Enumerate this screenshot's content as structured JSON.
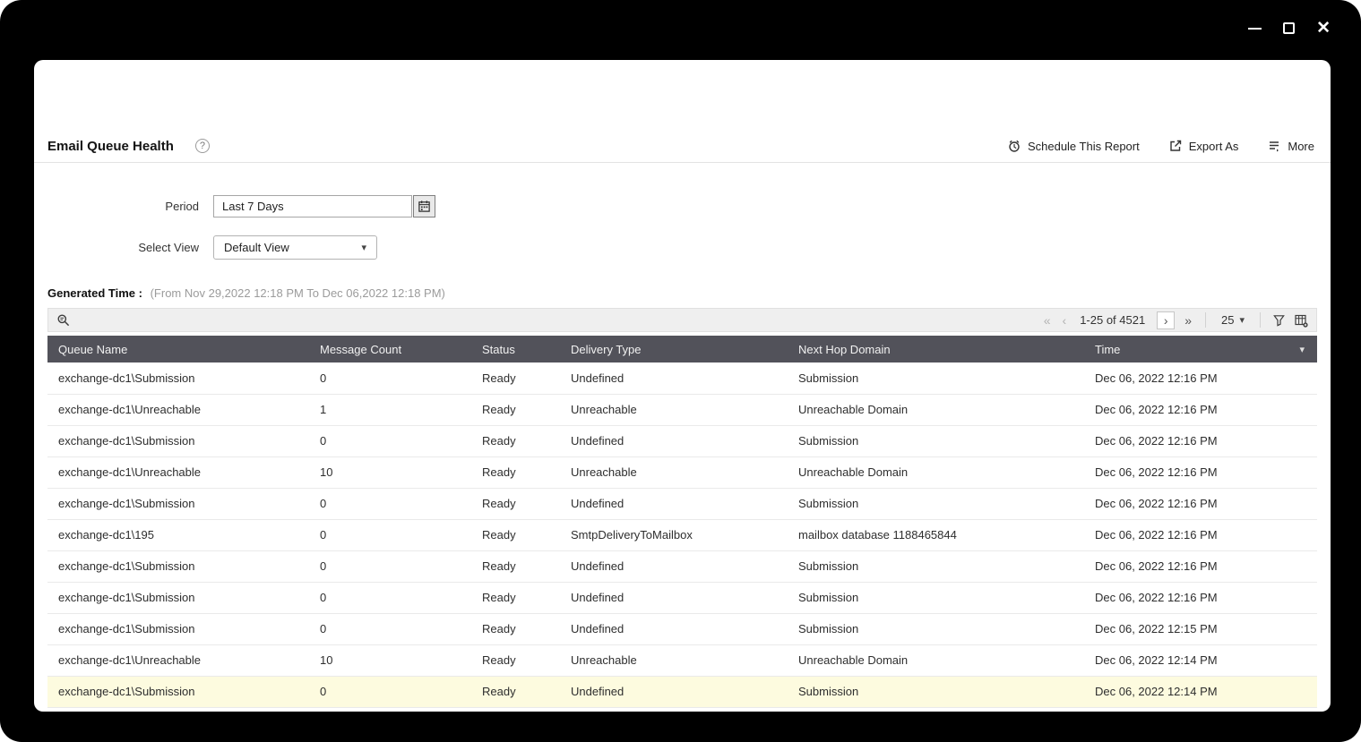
{
  "window": {
    "controls": {
      "minimize": "minimize",
      "maximize": "maximize",
      "close": "close"
    }
  },
  "header": {
    "title": "Email Queue Health",
    "help": "?",
    "actions": [
      {
        "label": "Schedule This Report",
        "icon": "clock-icon"
      },
      {
        "label": "Export As",
        "icon": "export-icon"
      },
      {
        "label": "More",
        "icon": "more-icon"
      }
    ]
  },
  "filters": {
    "period": {
      "label": "Period",
      "value": "Last 7 Days"
    },
    "select_view": {
      "label": "Select View",
      "value": "Default View"
    }
  },
  "generated_time": {
    "label": "Generated Time :",
    "value": "(From Nov 29,2022 12:18 PM To Dec 06,2022 12:18 PM)"
  },
  "toolbar": {
    "pagination": {
      "first": "«",
      "prev": "‹",
      "range": "1-25 of 4521",
      "next": "›",
      "last": "»"
    },
    "page_size": "25",
    "page_size_caret": "▾"
  },
  "table": {
    "columns": [
      "Queue Name",
      "Message Count",
      "Status",
      "Delivery Type",
      "Next Hop Domain",
      "Time"
    ],
    "sorted_column": "Time",
    "sort_caret": "▾",
    "highlighted_row_index": 10,
    "rows": [
      [
        "exchange-dc1\\Submission",
        "0",
        "Ready",
        "Undefined",
        "Submission",
        "Dec 06, 2022 12:16 PM"
      ],
      [
        "exchange-dc1\\Unreachable",
        "1",
        "Ready",
        "Unreachable",
        "Unreachable Domain",
        "Dec 06, 2022 12:16 PM"
      ],
      [
        "exchange-dc1\\Submission",
        "0",
        "Ready",
        "Undefined",
        "Submission",
        "Dec 06, 2022 12:16 PM"
      ],
      [
        "exchange-dc1\\Unreachable",
        "10",
        "Ready",
        "Unreachable",
        "Unreachable Domain",
        "Dec 06, 2022 12:16 PM"
      ],
      [
        "exchange-dc1\\Submission",
        "0",
        "Ready",
        "Undefined",
        "Submission",
        "Dec 06, 2022 12:16 PM"
      ],
      [
        "exchange-dc1\\195",
        "0",
        "Ready",
        "SmtpDeliveryToMailbox",
        "mailbox database 1188465844",
        "Dec 06, 2022 12:16 PM"
      ],
      [
        "exchange-dc1\\Submission",
        "0",
        "Ready",
        "Undefined",
        "Submission",
        "Dec 06, 2022 12:16 PM"
      ],
      [
        "exchange-dc1\\Submission",
        "0",
        "Ready",
        "Undefined",
        "Submission",
        "Dec 06, 2022 12:16 PM"
      ],
      [
        "exchange-dc1\\Submission",
        "0",
        "Ready",
        "Undefined",
        "Submission",
        "Dec 06, 2022 12:15 PM"
      ],
      [
        "exchange-dc1\\Unreachable",
        "10",
        "Ready",
        "Unreachable",
        "Unreachable Domain",
        "Dec 06, 2022 12:14 PM"
      ],
      [
        "exchange-dc1\\Submission",
        "0",
        "Ready",
        "Undefined",
        "Submission",
        "Dec 06, 2022 12:14 PM"
      ]
    ]
  },
  "colors": {
    "frame_bg": "#000000",
    "table_header_bg": "#52525A",
    "highlight_row_bg": "#FDFBDF",
    "toolbar_bg": "#EFEFEF"
  }
}
